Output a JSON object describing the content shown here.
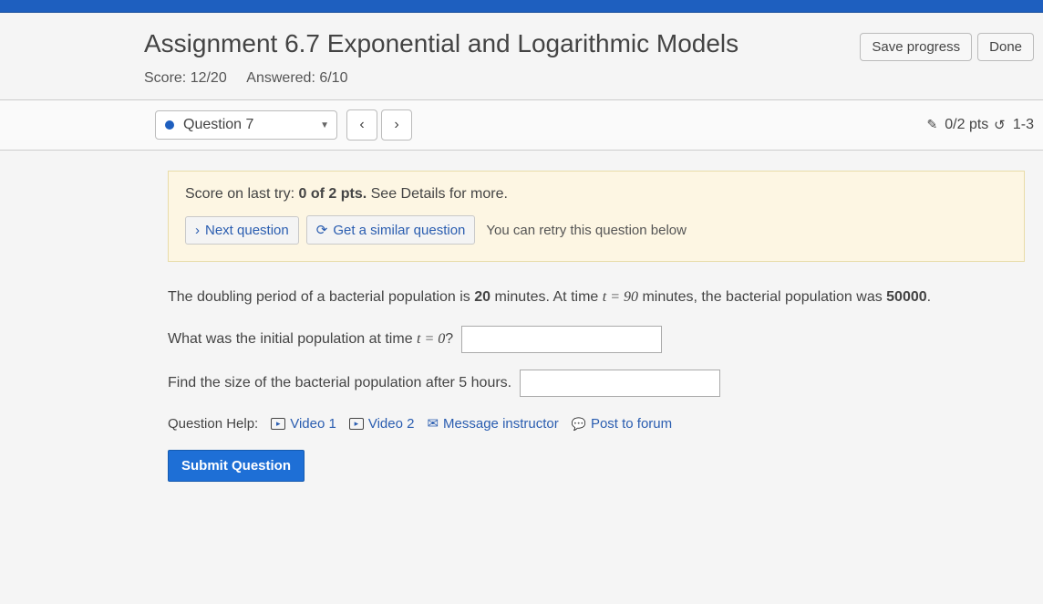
{
  "header": {
    "title": "Assignment 6.7 Exponential and Logarithmic Models",
    "score_label": "Score: 12/20",
    "answered_label": "Answered: 6/10",
    "save_button": "Save progress",
    "done_button": "Done"
  },
  "nav": {
    "current_question": "Question 7",
    "prev": "‹",
    "next": "›",
    "points_text": "0/2 pts",
    "attempts_text": "1-3"
  },
  "alert": {
    "prefix": "Score on last try: ",
    "score": "0 of 2 pts.",
    "suffix": " See Details for more.",
    "next_question": "Next question",
    "similar": "Get a similar question",
    "retry_note": "You can retry this question below"
  },
  "question": {
    "intro_a": "The doubling period of a bacterial population is ",
    "doubling": "20",
    "intro_b": " minutes. At time ",
    "tval": "t = 90",
    "intro_c": " minutes, the bacterial population was ",
    "pop": "50000",
    "intro_d": ".",
    "q1_a": "What was the initial population at time ",
    "q1_t": "t = 0",
    "q1_b": "?",
    "q2": "Find the size of the bacterial population after 5 hours."
  },
  "help": {
    "label": "Question Help:",
    "video1": "Video 1",
    "video2": "Video 2",
    "message": "Message instructor",
    "forum": "Post to forum"
  },
  "submit": "Submit Question"
}
